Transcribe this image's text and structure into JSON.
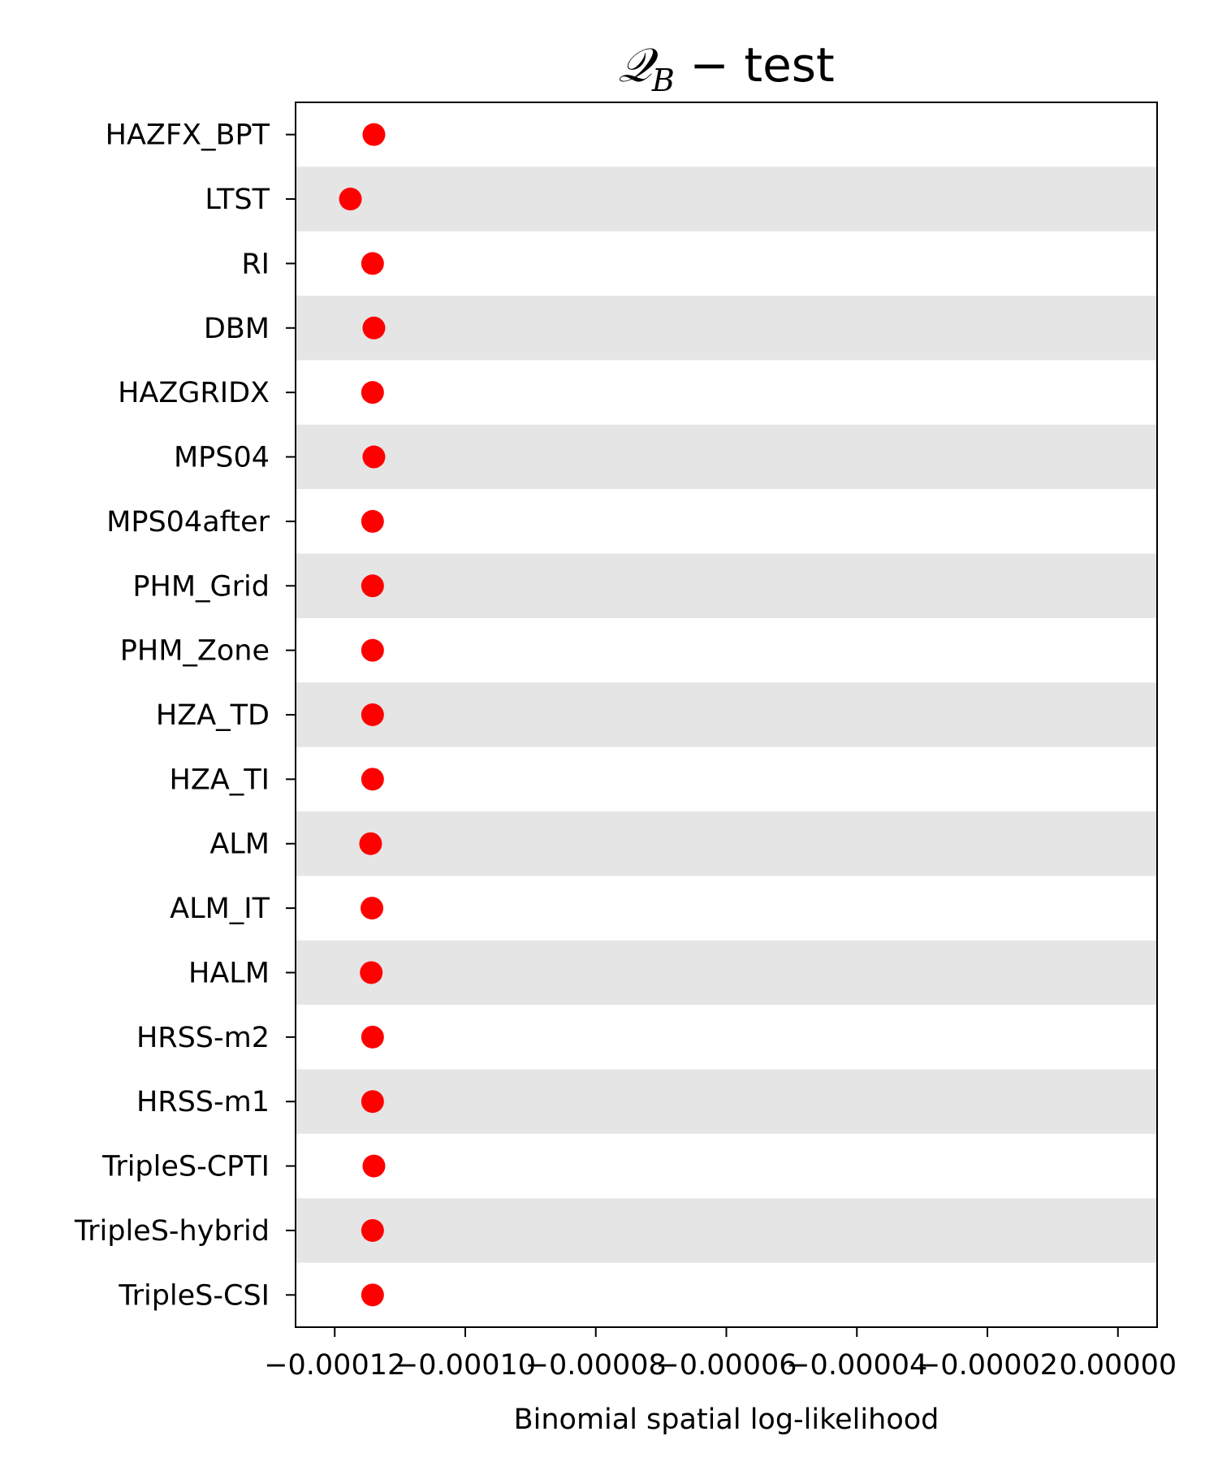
{
  "chart_data": {
    "type": "scatter",
    "title": "𝒬B − test",
    "title_main": "𝒬",
    "title_sub": "B",
    "title_rest": " − test",
    "xlabel": "Binomial spatial log-likelihood",
    "ylabel": "",
    "xlim": [
      -0.000126,
      6e-06
    ],
    "x_ticks": [
      -0.00012,
      -0.0001,
      -8e-05,
      -6e-05,
      -4e-05,
      -2e-05,
      0.0
    ],
    "x_tick_labels": [
      "−0.00012",
      "−0.00010",
      "−0.00008",
      "−0.00006",
      "−0.00004",
      "−0.00002",
      "0.00000"
    ],
    "grid": false,
    "row_bands": "alternating light gray",
    "marker_color": "#ff0000",
    "band_color": "#e5e5e5",
    "categories": [
      "HAZFX_BPT",
      "LTST",
      "RI",
      "DBM",
      "HAZGRIDX",
      "MPS04",
      "MPS04after",
      "PHM_Grid",
      "PHM_Zone",
      "HZA_TD",
      "HZA_TI",
      "ALM",
      "ALM_IT",
      "HALM",
      "HRSS-m2",
      "HRSS-m1",
      "TripleS-CPTI",
      "TripleS-hybrid",
      "TripleS-CSI"
    ],
    "values": [
      -0.000114,
      -0.0001176,
      -0.0001142,
      -0.000114,
      -0.0001142,
      -0.000114,
      -0.0001142,
      -0.0001142,
      -0.0001142,
      -0.0001142,
      -0.0001142,
      -0.0001145,
      -0.0001143,
      -0.0001144,
      -0.0001142,
      -0.0001142,
      -0.000114,
      -0.0001142,
      -0.0001142
    ]
  }
}
